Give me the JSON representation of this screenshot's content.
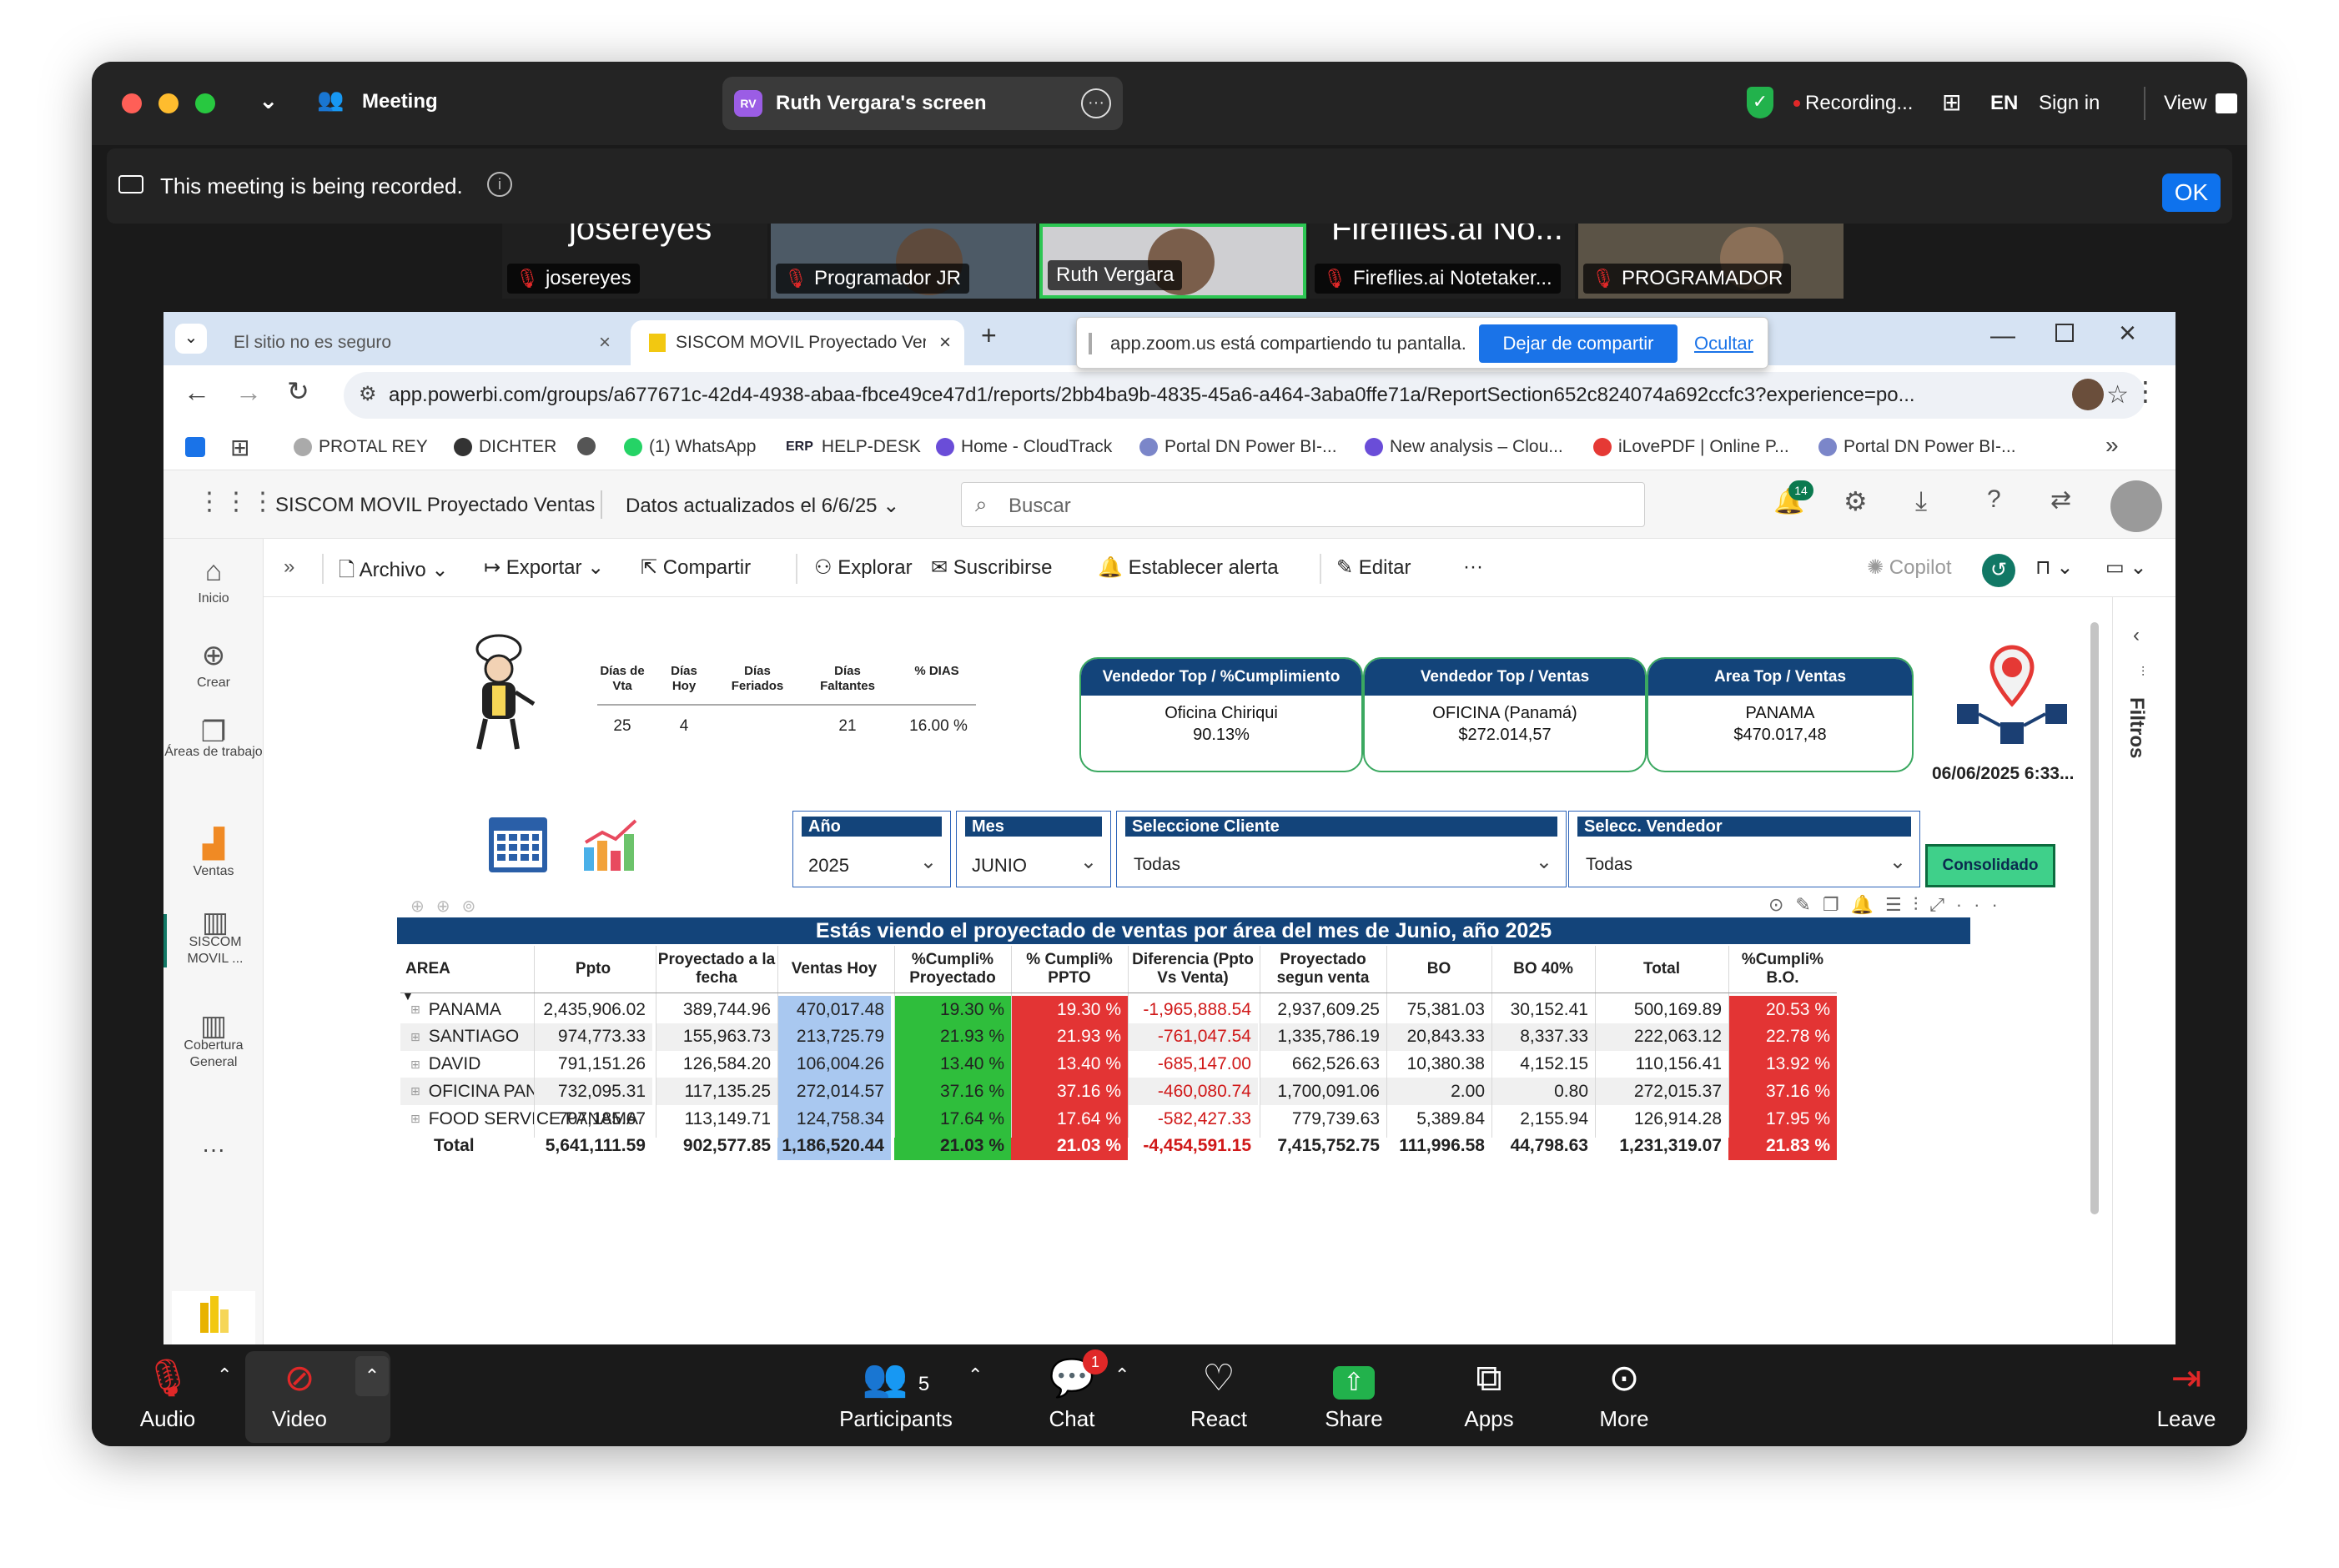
{
  "zoom": {
    "window_title": "Meeting",
    "screen_share_title": "Ruth Vergara's screen",
    "screen_badge": "RV",
    "recording_label": "Recording...",
    "lang": "EN",
    "sign_in": "Sign in",
    "view": "View",
    "banner_text": "This meeting is being recorded.",
    "ok_label": "OK",
    "participants": [
      {
        "name": "josereyes",
        "top_text": "josereyes"
      },
      {
        "name": "Programador JR"
      },
      {
        "name": "Ruth Vergara"
      },
      {
        "name": "Fireflies.ai Notetaker...",
        "top_text": "Fireflies.ai No..."
      },
      {
        "name": "PROGRAMADOR"
      }
    ],
    "toolbar": {
      "audio": "Audio",
      "video": "Video",
      "participants": "Participants",
      "participants_count": "5",
      "chat": "Chat",
      "chat_badge": "1",
      "react": "React",
      "share": "Share",
      "apps": "Apps",
      "more": "More",
      "leave": "Leave"
    }
  },
  "browser": {
    "tab_insecure": "El sitio no es seguro",
    "tab_active": "SISCOM MOVIL Proyectado Ver",
    "url": "app.powerbi.com/groups/a677671c-42d4-4938-abaa-fbce49ce47d1/reports/2bb4ba9b-4835-45a6-a464-3aba0ffe71a/ReportSection652c824074a692ccfc3?experience=po...",
    "share_notice": "app.zoom.us está compartiendo tu pantalla.",
    "stop_sharing": "Dejar de compartir",
    "hide": "Ocultar",
    "bookmarks": [
      "PROTAL REY",
      "DICHTER",
      "(1) WhatsApp",
      "HELP-DESK",
      "Home - CloudTrack",
      "Portal DN Power BI-...",
      "New analysis – Clou...",
      "iLovePDF | Online P...",
      "Portal DN Power BI-..."
    ],
    "erp_tag": "ERP"
  },
  "powerbi": {
    "report_name": "SISCOM MOVIL Proyectado Ventas",
    "data_updated": "Datos actualizados el 6/6/25",
    "search_placeholder": "Buscar",
    "notif_count": "14",
    "rail": [
      "Inicio",
      "Crear",
      "Áreas de trabajo",
      "Ventas",
      "SISCOM MOVIL ...",
      "Cobertura General"
    ],
    "toolbar": {
      "archivo": "Archivo",
      "exportar": "Exportar",
      "compartir": "Compartir",
      "explorar": "Explorar",
      "suscribirse": "Suscribirse",
      "alerta": "Establecer alerta",
      "editar": "Editar",
      "copilot": "Copilot"
    },
    "filters_label": "Filtros"
  },
  "report": {
    "days_headers": [
      "Días de Vta",
      "Días Hoy",
      "Días Feriados",
      "Días Faltantes",
      "% DIAS"
    ],
    "days_values": [
      "25",
      "4",
      "",
      "21",
      "16.00 %"
    ],
    "kpis": [
      {
        "title": "Vendedor Top / %Cumplimiento",
        "line1": "Oficina Chiriqui",
        "line2": "90.13%"
      },
      {
        "title": "Vendedor Top / Ventas",
        "line1": "OFICINA (Panamá)",
        "line2": "$272.014,57"
      },
      {
        "title": "Area Top / Ventas",
        "line1": "PANAMA",
        "line2": "$470.017,48"
      }
    ],
    "timestamp": "06/06/2025 6:33...",
    "slicers": {
      "year": {
        "label": "Año",
        "value": "2025"
      },
      "month": {
        "label": "Mes",
        "value": "JUNIO"
      },
      "client": {
        "label": "Seleccione Cliente",
        "value": "Todas"
      },
      "seller": {
        "label": "Selecc. Vendedor",
        "value": "Todas"
      }
    },
    "consolidado": "Consolidado",
    "table_title": "Estás viendo el proyectado de ventas por área del mes de Junio, año 2025",
    "columns": [
      "AREA",
      "Ppto",
      "Proyectado a la fecha",
      "Ventas Hoy",
      "%Cumpli% Proyectado",
      "% Cumpli% PPTO",
      "Diferencia (Ppto Vs Venta)",
      "Proyectado segun venta",
      "BO",
      "BO 40%",
      "Total",
      "%Cumpli% B.O."
    ],
    "rows": [
      [
        "PANAMA",
        "2,435,906.02",
        "389,744.96",
        "470,017.48",
        "19.30 %",
        "19.30 %",
        "-1,965,888.54",
        "2,937,609.25",
        "75,381.03",
        "30,152.41",
        "500,169.89",
        "20.53 %"
      ],
      [
        "SANTIAGO",
        "974,773.33",
        "155,963.73",
        "213,725.79",
        "21.93 %",
        "21.93 %",
        "-761,047.54",
        "1,335,786.19",
        "20,843.33",
        "8,337.33",
        "222,063.12",
        "22.78 %"
      ],
      [
        "DAVID",
        "791,151.26",
        "126,584.20",
        "106,004.26",
        "13.40 %",
        "13.40 %",
        "-685,147.00",
        "662,526.63",
        "10,380.38",
        "4,152.15",
        "110,156.41",
        "13.92 %"
      ],
      [
        "OFICINA PANAMA",
        "732,095.31",
        "117,135.25",
        "272,014.57",
        "37.16 %",
        "37.16 %",
        "-460,080.74",
        "1,700,091.06",
        "2.00",
        "0.80",
        "272,015.37",
        "37.16 %"
      ],
      [
        "FOOD SERVICE PANAMA",
        "707,185.67",
        "113,149.71",
        "124,758.34",
        "17.64 %",
        "17.64 %",
        "-582,427.33",
        "779,739.63",
        "5,389.84",
        "2,155.94",
        "126,914.28",
        "17.95 %"
      ]
    ],
    "total": [
      "Total",
      "5,641,111.59",
      "902,577.85",
      "1,186,520.44",
      "21.03 %",
      "21.03 %",
      "-4,454,591.15",
      "7,415,752.75",
      "111,996.58",
      "44,798.63",
      "1,231,319.07",
      "21.83 %"
    ],
    "pct_green_flags": [
      false,
      false,
      false,
      true,
      false
    ]
  }
}
